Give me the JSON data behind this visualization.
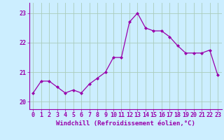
{
  "x": [
    0,
    1,
    2,
    3,
    4,
    5,
    6,
    7,
    8,
    9,
    10,
    11,
    12,
    13,
    14,
    15,
    16,
    17,
    18,
    19,
    20,
    21,
    22,
    23
  ],
  "y": [
    20.3,
    20.7,
    20.7,
    20.5,
    20.3,
    20.4,
    20.3,
    20.6,
    20.8,
    21.0,
    21.5,
    21.5,
    22.7,
    23.0,
    22.5,
    22.4,
    22.4,
    22.2,
    21.9,
    21.65,
    21.65,
    21.65,
    21.75,
    20.9
  ],
  "line_color": "#9900aa",
  "marker": "D",
  "marker_size": 2.0,
  "bg_color": "#cceeff",
  "grid_color": "#aaccbb",
  "xlabel": "Windchill (Refroidissement éolien,°C)",
  "xlabel_color": "#9900aa",
  "tick_color": "#9900aa",
  "spine_color": "#9900aa",
  "ylim": [
    19.75,
    23.35
  ],
  "xlim": [
    -0.5,
    23.5
  ],
  "yticks": [
    20,
    21,
    22,
    23
  ],
  "xticks": [
    0,
    1,
    2,
    3,
    4,
    5,
    6,
    7,
    8,
    9,
    10,
    11,
    12,
    13,
    14,
    15,
    16,
    17,
    18,
    19,
    20,
    21,
    22,
    23
  ],
  "label_fontsize": 6.5,
  "tick_fontsize": 6.0
}
